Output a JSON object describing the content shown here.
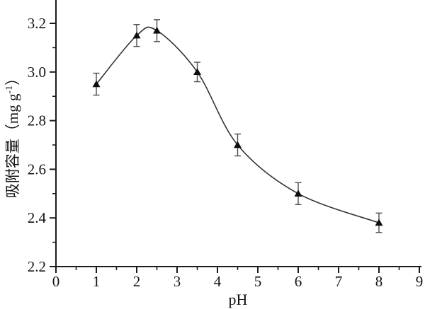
{
  "chart_data": {
    "type": "line",
    "xlabel": "pH",
    "ylabel_prefix": "吸附容量（mg g",
    "ylabel_superscript": "-1",
    "ylabel_suffix": "）",
    "x": [
      1,
      2,
      2.5,
      3.5,
      4.5,
      6,
      8
    ],
    "y": [
      2.95,
      3.15,
      3.17,
      3.0,
      2.7,
      2.5,
      2.38
    ],
    "y_err": [
      0.045,
      0.045,
      0.045,
      0.04,
      0.045,
      0.045,
      0.04
    ],
    "xlim": [
      0,
      9
    ],
    "ylim": [
      2.2,
      3.3
    ],
    "x_major_ticks": [
      0,
      1,
      2,
      3,
      4,
      5,
      6,
      7,
      8,
      9
    ],
    "x_minor_step": 0.5,
    "y_major_ticks": [
      2.2,
      2.4,
      2.6,
      2.8,
      3.0,
      3.2
    ],
    "y_minor_step": 0.1,
    "y_tick_decimals": 1,
    "marker": "filled-triangle-up",
    "grid": false,
    "legend": null,
    "colors": {
      "background": "#ffffff",
      "axis": "#1a1a1a",
      "curve": "#333333",
      "error_bar": "#4d4d4d",
      "marker": "#0d0d0d"
    }
  }
}
